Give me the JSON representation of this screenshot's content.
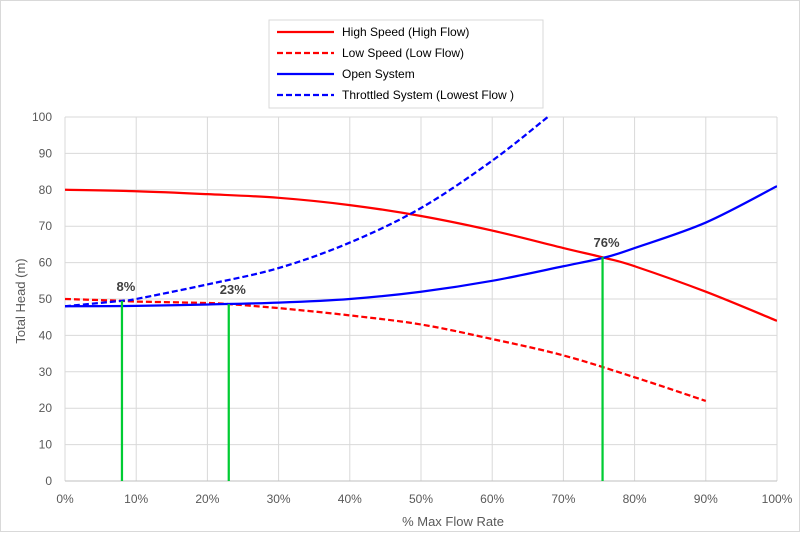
{
  "chart_data": {
    "type": "line",
    "title": "",
    "xlabel": "% Max Flow Rate",
    "ylabel": "Total Head (m)",
    "xlim": [
      0,
      100
    ],
    "ylim": [
      0,
      100
    ],
    "x_ticks": [
      "0%",
      "10%",
      "20%",
      "30%",
      "40%",
      "50%",
      "60%",
      "70%",
      "80%",
      "90%",
      "100%"
    ],
    "y_ticks": [
      "0",
      "10",
      "20",
      "30",
      "40",
      "50",
      "60",
      "70",
      "80",
      "90",
      "100"
    ],
    "grid": "horizontal and vertical",
    "legend_position": "top-center",
    "series": [
      {
        "name": "High Speed (High Flow)",
        "color": "#ff0000",
        "dash": "solid",
        "x": [
          0,
          10,
          20,
          30,
          40,
          50,
          60,
          70,
          76,
          80,
          90,
          100
        ],
        "y": [
          80,
          79.6,
          78.8,
          77.8,
          75.8,
          72.8,
          68.8,
          64,
          61.2,
          59,
          52,
          44
        ]
      },
      {
        "name": "Low Speed (Low Flow)",
        "color": "#ff0000",
        "dash": "dashed",
        "x": [
          0,
          8,
          10,
          20,
          23,
          30,
          40,
          50,
          60,
          70,
          80,
          90
        ],
        "y": [
          50,
          49.5,
          49.3,
          48.9,
          48.6,
          47.5,
          45.5,
          43,
          39,
          34.5,
          28.5,
          22
        ]
      },
      {
        "name": "Open System",
        "color": "#0000ff",
        "dash": "solid",
        "x": [
          0,
          10,
          20,
          30,
          40,
          50,
          60,
          70,
          76,
          80,
          90,
          100
        ],
        "y": [
          48,
          48.1,
          48.5,
          49,
          50,
          52,
          55,
          59,
          61.5,
          64,
          71,
          81
        ]
      },
      {
        "name": "Throttled System (Lowest Flow )",
        "color": "#0000ff",
        "dash": "dashed",
        "x": [
          0,
          8,
          10,
          20,
          30,
          40,
          50,
          60,
          67.8
        ],
        "y": [
          48,
          49.5,
          50,
          54,
          58.5,
          65.5,
          75,
          88,
          100
        ]
      }
    ],
    "annotations": [
      {
        "label": "8%",
        "x": 8,
        "y": 49.5,
        "color": "#00cc33"
      },
      {
        "label": "23%",
        "x": 23,
        "y": 48.6,
        "color": "#00cc33"
      },
      {
        "label": "76%",
        "x": 75.5,
        "y": 61.5,
        "color": "#00cc33"
      }
    ]
  }
}
